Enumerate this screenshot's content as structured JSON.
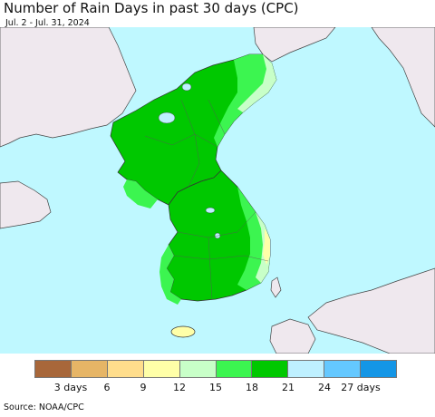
{
  "title": "Number of Rain Days in past 30 days (CPC)",
  "date_range": "Jul. 2 - Jul. 31, 2024",
  "source": "Source: NOAA/CPC",
  "colors": {
    "ocean": "#bff8ff",
    "foreign_land": "#efe8ee"
  },
  "legend": {
    "colors": [
      "#a8673a",
      "#e6b566",
      "#ffdd8c",
      "#ffffa8",
      "#c8ffc8",
      "#3cf550",
      "#00c800",
      "#bef0ff",
      "#64c8ff",
      "#1496e6"
    ],
    "labels": [
      "3 days",
      "6",
      "9",
      "12",
      "15",
      "18",
      "21",
      "24",
      "27 days"
    ]
  },
  "regions": [
    {
      "name": "north-korea",
      "class": "18-21 days",
      "color": "#00c800"
    },
    {
      "name": "south-korea",
      "class": "18-21 days",
      "color": "#00c800"
    },
    {
      "name": "northeast-coast",
      "class": "12-15 days",
      "color": "#c8ffc8"
    },
    {
      "name": "southeast-coast",
      "class": "9-12 days",
      "color": "#ffffa8"
    },
    {
      "name": "jeju-island",
      "class": "9-12 days",
      "color": "#ffffa8"
    }
  ]
}
